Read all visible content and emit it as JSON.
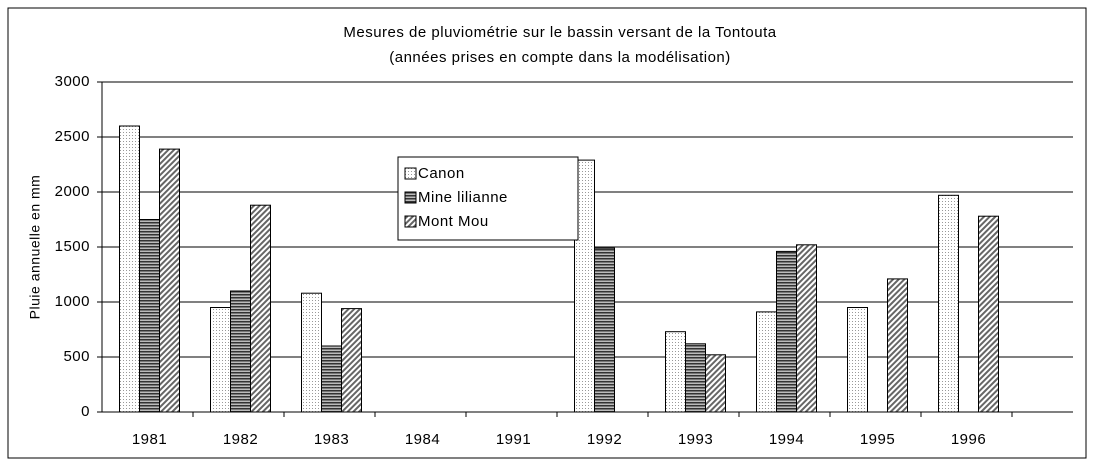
{
  "chart_data": {
    "type": "bar",
    "title": "Mesures de pluviométrie sur le bassin versant de la Tontouta",
    "subtitle": "(années prises en compte dans la modélisation)",
    "y_label": "Pluie annuelle en mm",
    "categories": [
      "1981",
      "1982",
      "1983",
      "1984",
      "1991",
      "1992",
      "1993",
      "1994",
      "1995",
      "1996"
    ],
    "series": [
      {
        "name": "Canon",
        "color": "#d8d8d8",
        "values": [
          2600,
          950,
          1080,
          null,
          null,
          2290,
          730,
          910,
          950,
          1970
        ]
      },
      {
        "name": "Mine lilianne",
        "color": "#505050",
        "values": [
          1750,
          1100,
          600,
          null,
          null,
          1490,
          620,
          1460,
          null,
          null
        ]
      },
      {
        "name": "Mont Mou",
        "color": "#909090",
        "values": [
          2390,
          1880,
          940,
          null,
          null,
          null,
          520,
          1520,
          1210,
          1780
        ]
      }
    ],
    "ylim": [
      0,
      3000
    ],
    "yticks": [
      0,
      500,
      1000,
      1500,
      2000,
      2500,
      3000
    ],
    "grid": true
  }
}
